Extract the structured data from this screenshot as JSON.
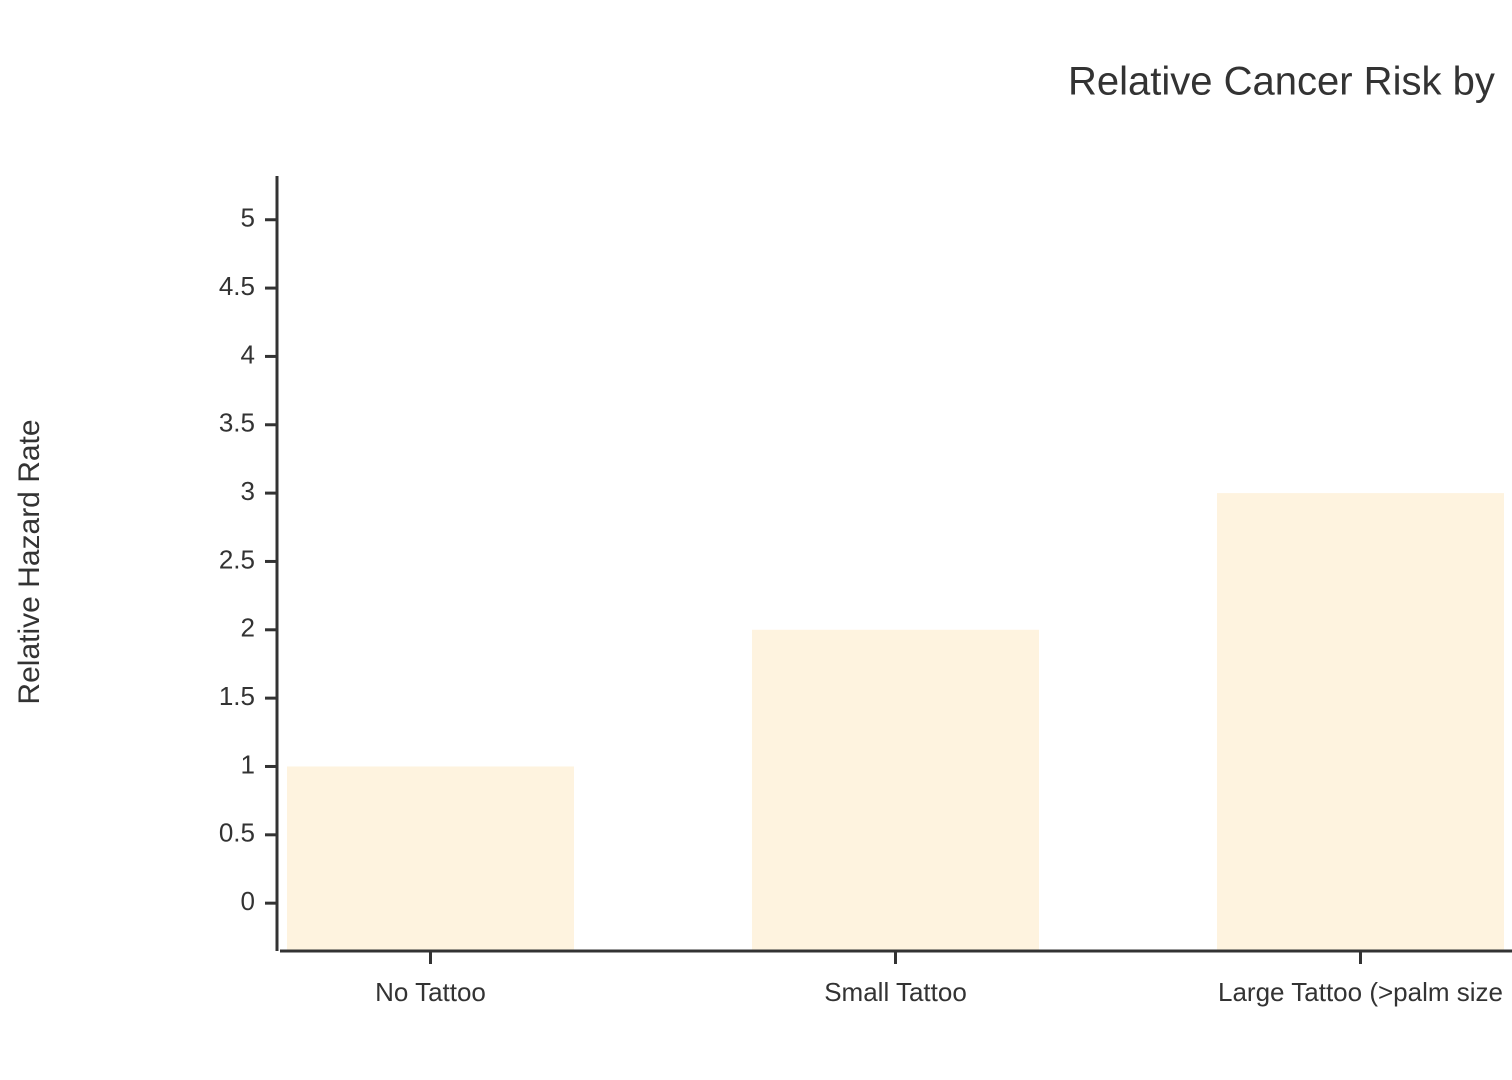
{
  "chart_data": {
    "type": "bar",
    "title": "Relative Cancer Risk by",
    "y_label": "Relative Hazard Rate",
    "categories": [
      "No Tattoo",
      "Small Tattoo",
      "Large Tattoo (>palm size"
    ],
    "values": [
      1,
      2,
      3
    ],
    "color": "#fef3df",
    "ylim": [
      -0.35,
      5.32
    ],
    "yticks": [
      0,
      0.5,
      1,
      1.5,
      2,
      2.5,
      3,
      3.5,
      4,
      4.5,
      5
    ],
    "grid": false
  }
}
